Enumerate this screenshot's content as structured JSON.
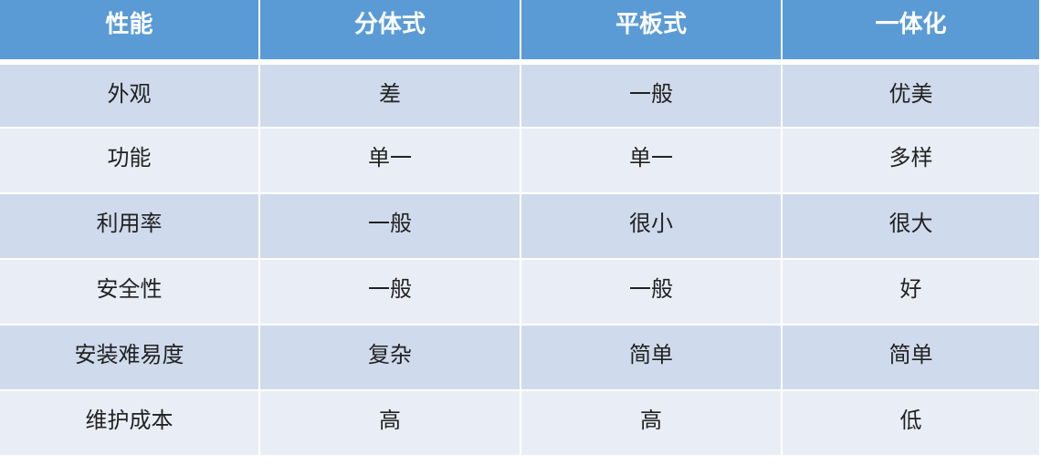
{
  "colors": {
    "header": "#5b9bd5",
    "row_odd": "#cfdbec",
    "row_even": "#e9eef6"
  },
  "table": {
    "headers": [
      "性能",
      "分体式",
      "平板式",
      "一体化"
    ],
    "rows": [
      [
        "外观",
        "差",
        "一般",
        "优美"
      ],
      [
        "功能",
        "单一",
        "单一",
        "多样"
      ],
      [
        "利用率",
        "一般",
        "很小",
        "很大"
      ],
      [
        "安全性",
        "一般",
        "一般",
        "好"
      ],
      [
        "安装难易度",
        "复杂",
        "简单",
        "简单"
      ],
      [
        "维护成本",
        "高",
        "高",
        "低"
      ]
    ]
  }
}
